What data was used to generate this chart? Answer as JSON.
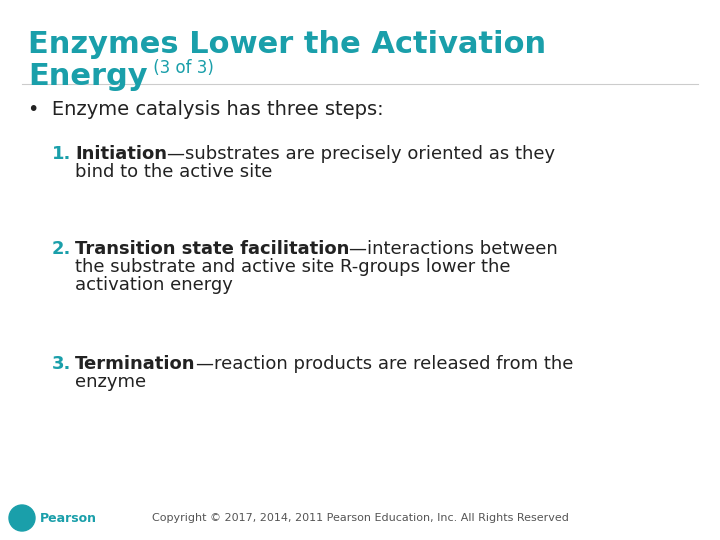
{
  "title_line1": "Enzymes Lower the Activation",
  "title_line2": "Energy",
  "title_suffix": " (3 of 3)",
  "title_color": "#1a9faa",
  "title_fontsize": 22,
  "title_suffix_fontsize": 12,
  "bg_color": "#ffffff",
  "bullet_text": "Enzyme catalysis has three steps:",
  "bullet_color": "#222222",
  "bullet_fontsize": 14,
  "items": [
    {
      "number": "1.",
      "number_color": "#1a9faa",
      "bold_part": "Initiation",
      "normal_part": "—substrates are precisely oriented as they\nbind to the active site",
      "fontsize": 13
    },
    {
      "number": "2.",
      "number_color": "#1a9faa",
      "bold_part": "Transition state facilitation",
      "normal_part": "—interactions between\nthe substrate and active site R-groups lower the\nactivation energy",
      "fontsize": 13
    },
    {
      "number": "3.",
      "number_color": "#1a9faa",
      "bold_part": "Termination",
      "normal_part": "—reaction products are released from the\nenzyme",
      "fontsize": 13
    }
  ],
  "footer_text": "Copyright © 2017, 2014, 2011 Pearson Education, Inc. All Rights Reserved",
  "footer_color": "#555555",
  "footer_fontsize": 8,
  "pearson_color": "#1a9faa",
  "pearson_text": "Pearson",
  "pearson_fontsize": 9
}
